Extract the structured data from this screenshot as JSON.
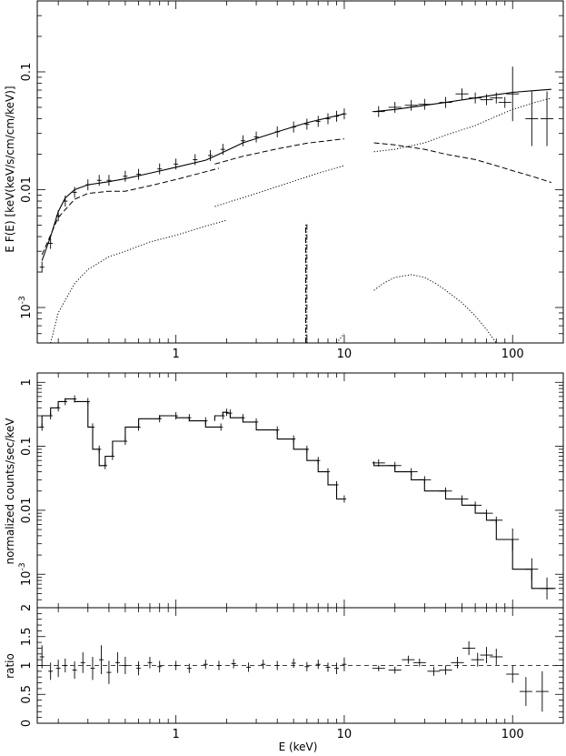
{
  "chart_data": [
    {
      "type": "line",
      "panel": "top",
      "ylabel": "E F(E)  [keV(keV/s/cm/cm/keV)]",
      "xlabel": "",
      "x_scale": "log",
      "y_scale": "log",
      "xlim": [
        0.15,
        200
      ],
      "ylim": [
        0.0005,
        0.4
      ],
      "x_ticks": [
        "1",
        "10",
        "100"
      ],
      "y_ticks": [
        "10^-3",
        "0.01",
        "0.1"
      ],
      "x_tick_values": [
        1,
        10,
        100
      ],
      "y_tick_values": [
        0.001,
        0.01,
        0.1
      ],
      "data": {
        "x": [
          0.16,
          0.18,
          0.2,
          0.22,
          0.25,
          0.3,
          0.35,
          0.4,
          0.5,
          0.6,
          0.8,
          1.0,
          1.3,
          1.6,
          1.9,
          2.5,
          3.0,
          4.0,
          5.0,
          6.0,
          7.0,
          8.0,
          9.0,
          10.0,
          16,
          20,
          25,
          30,
          40,
          50,
          60,
          70,
          80,
          90,
          100,
          130,
          160
        ],
        "y": [
          0.0022,
          0.0035,
          0.006,
          0.008,
          0.0095,
          0.011,
          0.012,
          0.012,
          0.013,
          0.0135,
          0.015,
          0.0165,
          0.018,
          0.0195,
          0.022,
          0.026,
          0.028,
          0.031,
          0.034,
          0.036,
          0.038,
          0.04,
          0.042,
          0.044,
          0.046,
          0.05,
          0.052,
          0.053,
          0.055,
          0.065,
          0.06,
          0.058,
          0.06,
          0.055,
          0.065,
          0.04,
          0.04
        ]
      },
      "series": [
        {
          "name": "",
          "style": "solid",
          "x": [
            0.16,
            0.18,
            0.2,
            0.22,
            0.25,
            0.3,
            0.4,
            0.5,
            0.7,
            1.0,
            1.5,
            1.8,
            2.5,
            4.0,
            6.0,
            10.0
          ],
          "y": [
            0.0025,
            0.004,
            0.0065,
            0.0085,
            0.01,
            0.011,
            0.0117,
            0.0124,
            0.0138,
            0.0155,
            0.0178,
            0.02,
            0.025,
            0.031,
            0.037,
            0.044
          ]
        },
        {
          "name": "",
          "style": "solid",
          "x": [
            15,
            20,
            30,
            40,
            60,
            80,
            100,
            130,
            170
          ],
          "y": [
            0.046,
            0.048,
            0.052,
            0.055,
            0.06,
            0.064,
            0.067,
            0.069,
            0.071
          ]
        },
        {
          "name": "",
          "style": "dashed",
          "x": [
            0.16,
            0.2,
            0.25,
            0.3,
            0.4,
            0.5,
            0.7,
            1.0,
            1.5,
            1.8
          ],
          "y": [
            0.0028,
            0.0058,
            0.0083,
            0.0093,
            0.0097,
            0.0097,
            0.0108,
            0.0122,
            0.0142,
            0.0152
          ]
        },
        {
          "name": "",
          "style": "dashed",
          "x": [
            1.7,
            2.5,
            4.0,
            6.0,
            10.0
          ],
          "y": [
            0.0165,
            0.0192,
            0.0222,
            0.0248,
            0.027
          ]
        },
        {
          "name": "",
          "style": "dashed",
          "x": [
            15,
            20,
            30,
            40,
            60,
            80,
            100,
            130,
            170
          ],
          "y": [
            0.025,
            0.024,
            0.022,
            0.02,
            0.018,
            0.016,
            0.0145,
            0.013,
            0.0115
          ]
        },
        {
          "name": "",
          "style": "dotted",
          "x": [
            0.18,
            0.2,
            0.25,
            0.3,
            0.4,
            0.5,
            0.7,
            1.0,
            1.5,
            2.0
          ],
          "y": [
            0.0005,
            0.0009,
            0.0016,
            0.0021,
            0.0027,
            0.003,
            0.0036,
            0.0041,
            0.0049,
            0.0055
          ]
        },
        {
          "name": "",
          "style": "dotted",
          "x": [
            1.7,
            3.0,
            5.0,
            7.0,
            10.0
          ],
          "y": [
            0.0072,
            0.0093,
            0.0118,
            0.0138,
            0.016
          ]
        },
        {
          "name": "",
          "style": "dotted",
          "x": [
            15,
            20,
            30,
            40,
            60,
            80,
            100,
            130,
            170
          ],
          "y": [
            0.021,
            0.022,
            0.025,
            0.029,
            0.035,
            0.042,
            0.048,
            0.054,
            0.06
          ]
        },
        {
          "name": "",
          "style": "dotted",
          "x": [
            15,
            17,
            20,
            25,
            30,
            35,
            40,
            50,
            60,
            70,
            80
          ],
          "y": [
            0.0014,
            0.0016,
            0.0018,
            0.0019,
            0.0018,
            0.0016,
            0.0014,
            0.0011,
            0.00085,
            0.00065,
            0.0005
          ]
        },
        {
          "name": "",
          "style": "dotted",
          "x": [
            9,
            9.5,
            10
          ],
          "y": [
            0.0005,
            0.00055,
            0.0006
          ]
        },
        {
          "name": "",
          "style": "dash-dot",
          "x": [
            5.9,
            5.9,
            6.0,
            6.0
          ],
          "y": [
            0.0005,
            0.0051,
            0.0051,
            0.0005
          ]
        }
      ]
    },
    {
      "type": "line",
      "panel": "middle",
      "ylabel": "normalized counts/sec/keV",
      "xlabel": "",
      "x_scale": "log",
      "y_scale": "log",
      "xlim": [
        0.15,
        200
      ],
      "ylim": [
        0.0003,
        1.4
      ],
      "x_ticks": [],
      "y_ticks": [
        "10^-3",
        "0.01",
        "0.1",
        "1"
      ],
      "y_tick_values": [
        0.001,
        0.01,
        0.1,
        1
      ],
      "x": [
        0.16,
        0.18,
        0.2,
        0.22,
        0.25,
        0.3,
        0.32,
        0.35,
        0.38,
        0.42,
        0.5,
        0.6,
        0.8,
        1.0,
        1.2,
        1.5,
        1.85,
        1.9,
        2.0,
        2.1,
        2.5,
        3.0,
        4.0,
        5.0,
        6.0,
        7.0,
        8.0,
        9.0,
        10.0,
        16,
        20,
        25,
        30,
        40,
        50,
        60,
        70,
        80,
        100,
        130,
        160
      ],
      "y": [
        0.2,
        0.3,
        0.4,
        0.5,
        0.55,
        0.5,
        0.2,
        0.09,
        0.05,
        0.07,
        0.12,
        0.2,
        0.27,
        0.3,
        0.28,
        0.25,
        0.2,
        0.3,
        0.34,
        0.33,
        0.28,
        0.24,
        0.18,
        0.13,
        0.09,
        0.06,
        0.04,
        0.025,
        0.015,
        0.055,
        0.05,
        0.04,
        0.03,
        0.02,
        0.015,
        0.012,
        0.009,
        0.007,
        0.0035,
        0.0012,
        0.0006
      ],
      "series": [
        {
          "name": "",
          "style": "solid",
          "x": [
            0.16,
            0.18,
            0.2,
            0.22,
            0.25,
            0.3,
            0.32,
            0.35,
            0.38,
            0.42,
            0.5,
            0.6,
            0.8,
            1.0,
            1.2,
            1.5,
            1.85
          ],
          "y": [
            0.2,
            0.3,
            0.4,
            0.5,
            0.55,
            0.5,
            0.2,
            0.09,
            0.05,
            0.07,
            0.12,
            0.2,
            0.27,
            0.3,
            0.28,
            0.25,
            0.2
          ]
        },
        {
          "name": "",
          "style": "solid",
          "x": [
            1.7,
            1.9,
            2.0,
            2.1,
            2.5,
            3.0,
            4.0,
            5.0,
            6.0,
            7.0,
            8.0,
            9.0,
            10.0
          ],
          "y": [
            0.25,
            0.3,
            0.34,
            0.33,
            0.28,
            0.24,
            0.18,
            0.13,
            0.09,
            0.06,
            0.04,
            0.025,
            0.015
          ]
        },
        {
          "name": "",
          "style": "solid",
          "x": [
            15,
            20,
            25,
            30,
            40,
            50,
            60,
            70,
            80,
            100,
            130,
            160,
            180
          ],
          "y": [
            0.058,
            0.05,
            0.04,
            0.03,
            0.02,
            0.015,
            0.012,
            0.009,
            0.007,
            0.0035,
            0.0012,
            0.0006,
            0.0006
          ]
        }
      ]
    },
    {
      "type": "scatter",
      "panel": "bottom",
      "ylabel": "ratio",
      "xlabel": "E (keV)",
      "x_scale": "log",
      "y_scale": "linear",
      "xlim": [
        0.15,
        200
      ],
      "ylim": [
        0,
        2
      ],
      "x_ticks": [
        "1",
        "10",
        "100"
      ],
      "y_ticks": [
        "0",
        "0.5",
        "1",
        "1.5",
        "2"
      ],
      "x_tick_values": [
        1,
        10,
        100
      ],
      "y_tick_values": [
        0,
        0.5,
        1,
        1.5,
        2
      ],
      "reference_line": 1,
      "x": [
        0.16,
        0.18,
        0.2,
        0.22,
        0.25,
        0.28,
        0.32,
        0.36,
        0.4,
        0.45,
        0.5,
        0.6,
        0.7,
        0.8,
        1.0,
        1.2,
        1.5,
        1.8,
        2.2,
        2.7,
        3.3,
        4.0,
        5.0,
        6.0,
        7.0,
        8.0,
        9.0,
        10.0,
        16,
        20,
        24,
        28,
        34,
        40,
        47,
        55,
        62,
        70,
        80,
        100,
        120,
        150
      ],
      "y": [
        1.15,
        0.9,
        0.95,
        1.0,
        0.92,
        1.05,
        0.95,
        1.1,
        0.88,
        1.05,
        1.0,
        0.95,
        1.05,
        0.98,
        1.0,
        0.95,
        1.02,
        1.0,
        1.03,
        0.97,
        1.02,
        1.0,
        1.04,
        0.98,
        1.02,
        0.97,
        0.95,
        1.02,
        0.95,
        0.92,
        1.1,
        1.05,
        0.9,
        0.92,
        1.05,
        1.3,
        1.1,
        1.18,
        1.15,
        0.85,
        0.55,
        0.55
      ],
      "yerr": [
        0.2,
        0.15,
        0.15,
        0.12,
        0.15,
        0.18,
        0.2,
        0.25,
        0.2,
        0.18,
        0.15,
        0.12,
        0.1,
        0.1,
        0.08,
        0.08,
        0.08,
        0.08,
        0.08,
        0.08,
        0.08,
        0.08,
        0.08,
        0.08,
        0.08,
        0.08,
        0.1,
        0.12,
        0.05,
        0.06,
        0.07,
        0.07,
        0.08,
        0.08,
        0.1,
        0.12,
        0.12,
        0.14,
        0.14,
        0.15,
        0.25,
        0.35
      ]
    }
  ]
}
